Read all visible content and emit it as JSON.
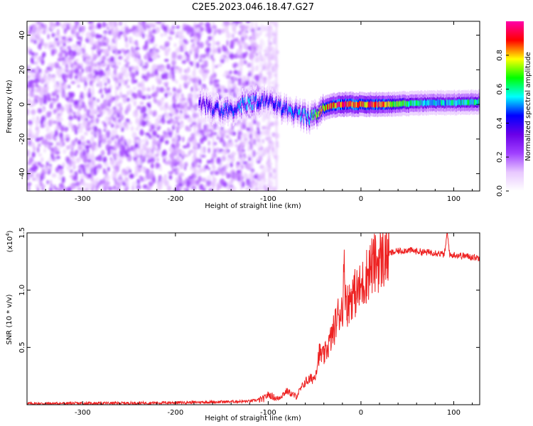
{
  "figure_title": "C2E5.2023.046.18.47.G27",
  "chart_data": [
    {
      "type": "heatmap",
      "title": "C2E5.2023.046.18.47.G27",
      "xlabel": "Height of straight line (km)",
      "ylabel": "Frequency (Hz)",
      "xlim": [
        -360,
        128
      ],
      "ylim": [
        -50,
        48
      ],
      "xticks": [
        -300,
        -200,
        -100,
        0,
        100
      ],
      "xtick_labels": [
        "-300",
        "-200",
        "-100",
        "0",
        "100"
      ],
      "yticks": [
        -40,
        -20,
        0,
        20,
        40
      ],
      "ytick_labels": [
        "-40",
        "-20",
        "0",
        "20",
        "40"
      ],
      "colorbar": {
        "label": "Normalized spectral amplitude",
        "range": [
          0,
          1
        ],
        "ticks": [
          0.0,
          0.2,
          0.4,
          0.6,
          0.8
        ],
        "tick_labels": [
          "0.0",
          "0.2",
          "0.4",
          "0.6",
          "0.8"
        ],
        "colormap": [
          "#ffffff",
          "#e8c8ff",
          "#a040ff",
          "#6a00e8",
          "#0000ff",
          "#00ffff",
          "#00ff00",
          "#ffff00",
          "#ff0000",
          "#ff00aa"
        ]
      },
      "noise_region": {
        "x_from": -360,
        "x_to": -90,
        "amplitude": 0.2
      },
      "ridge": {
        "x": [
          -175,
          -160,
          -140,
          -120,
          -100,
          -85,
          -70,
          -55,
          -45,
          -35,
          -20,
          0,
          20,
          50,
          80,
          100,
          128
        ],
        "y": [
          2,
          -3,
          -3,
          1,
          2,
          -3,
          -5,
          -8,
          -4,
          -1,
          0,
          0,
          0,
          0.5,
          1,
          1,
          1.5
        ],
        "amplitude": [
          0.35,
          0.4,
          0.45,
          0.5,
          0.4,
          0.45,
          0.5,
          0.55,
          0.75,
          0.8,
          0.9,
          0.85,
          0.85,
          0.6,
          0.55,
          0.55,
          0.6
        ]
      }
    },
    {
      "type": "line",
      "xlabel": "Height of straight line (km)",
      "ylabel": "SNR (10 * v/v)",
      "y_scale_label": "(x10",
      "y_scale_exp": "4",
      "y_scale_close": ")",
      "xlim": [
        -360,
        128
      ],
      "ylim": [
        0,
        15000
      ],
      "xticks": [
        -300,
        -200,
        -100,
        0,
        100
      ],
      "xtick_labels": [
        "-300",
        "-200",
        "-100",
        "0",
        "100"
      ],
      "yticks": [
        5000,
        10000,
        15000
      ],
      "ytick_labels": [
        "0.5",
        "1.0",
        "1.5"
      ],
      "color": "#ee2222",
      "series": [
        {
          "name": "SNR",
          "x": [
            -360,
            -300,
            -250,
            -200,
            -150,
            -120,
            -105,
            -100,
            -90,
            -80,
            -70,
            -60,
            -50,
            -45,
            -40,
            -35,
            -30,
            -25,
            -20,
            -18,
            -15,
            -10,
            -5,
            0,
            10,
            20,
            30,
            40,
            50,
            60,
            70,
            80,
            90,
            93,
            96,
            100,
            110,
            120,
            128
          ],
          "y": [
            100,
            120,
            140,
            180,
            250,
            300,
            500,
            900,
            500,
            1200,
            700,
            2000,
            2400,
            4500,
            4200,
            5200,
            6300,
            7800,
            8500,
            11500,
            8600,
            9600,
            9800,
            10200,
            12000,
            12600,
            13200,
            13400,
            13500,
            13400,
            13300,
            13300,
            13100,
            15000,
            13000,
            13100,
            13000,
            12900,
            12800
          ]
        }
      ]
    }
  ]
}
